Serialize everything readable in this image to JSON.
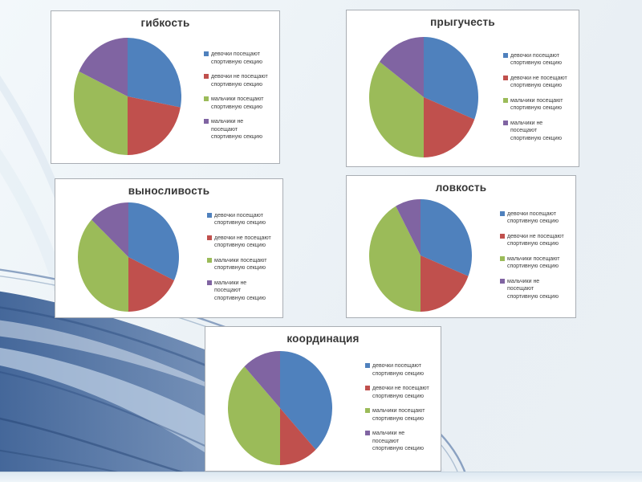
{
  "slide": {
    "background_base": "#edf3f7",
    "wave_accent": "#31578f",
    "panel_background": "#ffffff",
    "panel_border": "#a9aeb4"
  },
  "chart_data": [
    {
      "type": "pie",
      "title": "гибкость",
      "labels": [
        "девочки посещают спортивную секцию",
        "девочки не посещают спортивную секцию",
        "мальчики посещают спортивную секцию",
        "мальчики не посещают спортивную секцию"
      ],
      "values": [
        28,
        22,
        32,
        18
      ],
      "colors": [
        "#4f81bd",
        "#c0504d",
        "#9bbb59",
        "#8064a2"
      ],
      "legend_position": "right"
    },
    {
      "type": "pie",
      "title": "прыгучесть",
      "labels": [
        "девочки посещают спортивную секцию",
        "девочки не посещают спортивную секцию",
        "мальчики посещают спортивную секцию",
        "мальчики не посещают спортивную секцию"
      ],
      "values": [
        31,
        19,
        35,
        15
      ],
      "colors": [
        "#4f81bd",
        "#c0504d",
        "#9bbb59",
        "#8064a2"
      ],
      "legend_position": "right"
    },
    {
      "type": "pie",
      "title": "выносливость",
      "labels": [
        "девочки посещают спортивную секцию",
        "девочки не посещают спортивную секцию",
        "мальчики посещают спортивную секцию",
        "мальчики не посещают спортивную секцию"
      ],
      "values": [
        32,
        18,
        37,
        13
      ],
      "colors": [
        "#4f81bd",
        "#c0504d",
        "#9bbb59",
        "#8064a2"
      ],
      "legend_position": "right"
    },
    {
      "type": "pie",
      "title": "ловкость",
      "labels": [
        "девочки посещают спортивную секцию",
        "девочки не посещают спортивную секцию",
        "мальчики посещают спортивную секцию",
        "мальчики не посещают спортивную секцию"
      ],
      "values": [
        31,
        19,
        42,
        8
      ],
      "colors": [
        "#4f81bd",
        "#c0504d",
        "#9bbb59",
        "#8064a2"
      ],
      "legend_position": "right"
    },
    {
      "type": "pie",
      "title": "координация",
      "labels": [
        "девочки посещают спортивную секцию",
        "девочки не посещают спортивную секцию",
        "мальчики посещают спортивную секцию",
        "мальчики не посещают спортивную секцию"
      ],
      "values": [
        38,
        12,
        38,
        12
      ],
      "colors": [
        "#4f81bd",
        "#c0504d",
        "#9bbb59",
        "#8064a2"
      ],
      "legend_position": "right"
    }
  ]
}
